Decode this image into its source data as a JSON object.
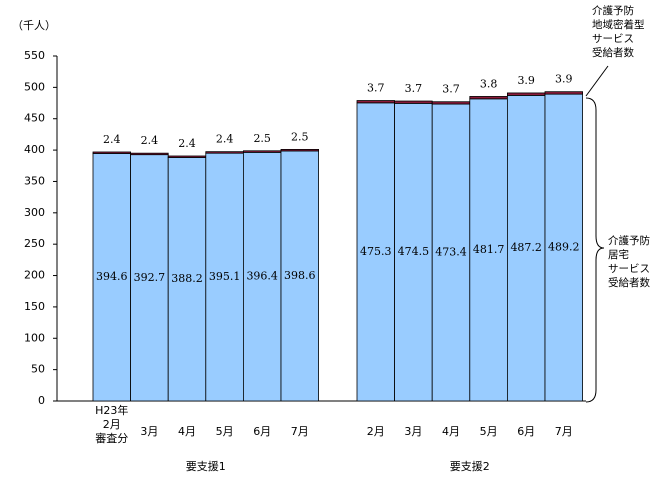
{
  "chart_data": {
    "type": "stacked-bar",
    "y_label": "（千人）",
    "groups": [
      {
        "name": "要支援1",
        "categories": [
          "H23年\n2月\n審査分",
          "3月",
          "4月",
          "5月",
          "6月",
          "7月"
        ]
      },
      {
        "name": "要支援2",
        "categories": [
          "2月",
          "3月",
          "4月",
          "5月",
          "6月",
          "7月"
        ]
      }
    ],
    "series": [
      {
        "name": "介護予防\n居宅\nサービス\n受給者数",
        "color": "#99ccff",
        "values": [
          394.6,
          392.7,
          388.2,
          395.1,
          396.4,
          398.6,
          475.3,
          474.5,
          473.4,
          481.7,
          487.2,
          489.2
        ]
      },
      {
        "name": "介護予防\n地域密着型\nサービス\n受給者数",
        "color": "#8b1a3a",
        "values": [
          2.4,
          2.4,
          2.4,
          2.4,
          2.5,
          2.5,
          3.7,
          3.7,
          3.7,
          3.8,
          3.9,
          3.9
        ]
      }
    ],
    "ylim": [
      0,
      550
    ],
    "yticks": [
      0,
      50,
      100,
      150,
      200,
      250,
      300,
      350,
      400,
      450,
      500,
      550
    ]
  }
}
